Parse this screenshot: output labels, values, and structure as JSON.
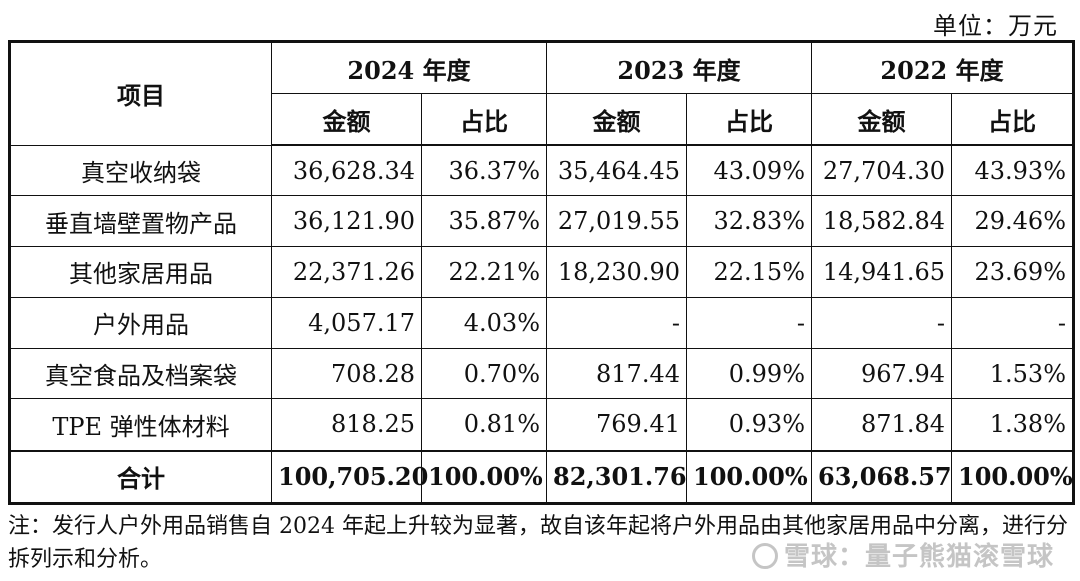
{
  "unit_label": "单位：万元",
  "table": {
    "item_header": "项目",
    "years": [
      "2024 年度",
      "2023 年度",
      "2022 年度"
    ],
    "sub_headers": [
      "金额",
      "占比"
    ],
    "rows": [
      {
        "item": "真空收纳袋",
        "values": [
          "36,628.34",
          "36.37%",
          "35,464.45",
          "43.09%",
          "27,704.30",
          "43.93%"
        ]
      },
      {
        "item": "垂直墙壁置物产品",
        "values": [
          "36,121.90",
          "35.87%",
          "27,019.55",
          "32.83%",
          "18,582.84",
          "29.46%"
        ]
      },
      {
        "item": "其他家居用品",
        "values": [
          "22,371.26",
          "22.21%",
          "18,230.90",
          "22.15%",
          "14,941.65",
          "23.69%"
        ]
      },
      {
        "item": "户外用品",
        "values": [
          "4,057.17",
          "4.03%",
          "-",
          "-",
          "-",
          "-"
        ]
      },
      {
        "item": "真空食品及档案袋",
        "values": [
          "708.28",
          "0.70%",
          "817.44",
          "0.99%",
          "967.94",
          "1.53%"
        ]
      },
      {
        "item": "TPE 弹性体材料",
        "values": [
          "818.25",
          "0.81%",
          "769.41",
          "0.93%",
          "871.84",
          "1.38%"
        ]
      }
    ],
    "total": {
      "item": "合计",
      "values": [
        "100,705.20",
        "100.00%",
        "82,301.76",
        "100.00%",
        "63,068.57",
        "100.00%"
      ]
    }
  },
  "note": "注：发行人户外用品销售自 2024 年起上升较为显著，故自该年起将户外用品由其他家居用品中分离，进行分拆列示和分析。",
  "watermark": "雪球：量子熊猫滚雪球"
}
